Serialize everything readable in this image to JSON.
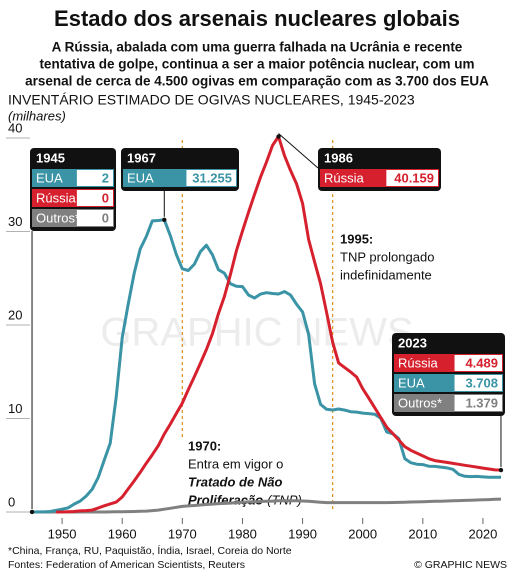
{
  "chart_data": {
    "type": "line",
    "title": "Estado dos arsenais nucleares globais",
    "subtitle": [
      "A Rússia, abalada com uma guerra falhada na Ucrânia e recente",
      "tentativa de golpe, continua a ser a maior potência nuclear, com um",
      "arsenal de cerca de 4.500 ogivas em comparação com as 3.700 dos EUA"
    ],
    "chart_title": "INVENTÁRIO ESTIMADO DE OGIVAS NUCLEARES, 1945-2023",
    "y_label": "(milhares)",
    "x": [
      1945,
      1946,
      1947,
      1948,
      1949,
      1950,
      1951,
      1952,
      1953,
      1954,
      1955,
      1956,
      1957,
      1958,
      1959,
      1960,
      1961,
      1962,
      1963,
      1964,
      1965,
      1966,
      1967,
      1968,
      1969,
      1970,
      1971,
      1972,
      1973,
      1974,
      1975,
      1976,
      1977,
      1978,
      1979,
      1980,
      1981,
      1982,
      1983,
      1984,
      1985,
      1986,
      1987,
      1988,
      1989,
      1990,
      1991,
      1992,
      1993,
      1994,
      1995,
      1996,
      1997,
      1998,
      1999,
      2000,
      2001,
      2002,
      2003,
      2004,
      2005,
      2006,
      2007,
      2008,
      2009,
      2010,
      2011,
      2012,
      2013,
      2014,
      2015,
      2016,
      2017,
      2018,
      2019,
      2020,
      2021,
      2022,
      2023
    ],
    "series": [
      {
        "name": "EUA",
        "color": "#3a94a6",
        "values": [
          0.002,
          0.009,
          0.013,
          0.05,
          0.17,
          0.299,
          0.438,
          0.841,
          1.169,
          1.703,
          2.422,
          3.692,
          5.543,
          7.345,
          12.298,
          18.638,
          22.229,
          25.54,
          28.133,
          29.463,
          31.139,
          31.175,
          31.255,
          29.561,
          27.552,
          26.008,
          25.83,
          26.516,
          27.835,
          28.537,
          27.519,
          25.914,
          25.542,
          24.418,
          24.138,
          24.104,
          23.208,
          22.886,
          23.305,
          23.459,
          23.368,
          23.317,
          23.575,
          23.205,
          22.217,
          21.392,
          19.008,
          13.708,
          11.511,
          10.979,
          10.904,
          11.011,
          10.903,
          10.732,
          10.685,
          10.577,
          10.526,
          10.457,
          10.027,
          8.57,
          8.36,
          7.853,
          5.709,
          5.273,
          5.113,
          5.066,
          4.897,
          4.881,
          4.804,
          4.717,
          4.571,
          4.018,
          3.822,
          3.785,
          3.805,
          3.75,
          3.708,
          3.708,
          3.708
        ]
      },
      {
        "name": "Rússia",
        "color": "#d6202e",
        "values": [
          null,
          null,
          null,
          null,
          0.001,
          0.005,
          0.025,
          0.05,
          0.12,
          0.15,
          0.2,
          0.426,
          0.66,
          0.869,
          1.06,
          1.605,
          2.471,
          3.322,
          4.238,
          5.221,
          6.129,
          7.089,
          8.339,
          9.399,
          10.538,
          11.643,
          13.092,
          14.478,
          15.915,
          17.385,
          19.055,
          21.205,
          23.044,
          25.393,
          27.935,
          30.062,
          32.049,
          33.952,
          35.804,
          37.431,
          39.197,
          40.159,
          38.107,
          36.538,
          35.078,
          32.98,
          29.154,
          26.734,
          24.403,
          21.339,
          18.179,
          15.942,
          15.442,
          14.978,
          14.428,
          13.188,
          12.188,
          11.152,
          10.114,
          9.076,
          8.4,
          7.7,
          7.0,
          6.6,
          6.3,
          6.0,
          5.7,
          5.5,
          5.4,
          5.3,
          5.2,
          5.1,
          5.0,
          4.9,
          4.8,
          4.7,
          4.6,
          4.5,
          4.489
        ]
      },
      {
        "name": "Outros*",
        "color": "#808080",
        "values": [
          0,
          0,
          0,
          0,
          0,
          0,
          0,
          0.001,
          0.001,
          0.001,
          0.001,
          0.003,
          0.005,
          0.01,
          0.02,
          0.03,
          0.04,
          0.05,
          0.07,
          0.1,
          0.15,
          0.2,
          0.3,
          0.4,
          0.5,
          0.6,
          0.65,
          0.7,
          0.75,
          0.8,
          0.85,
          0.9,
          0.92,
          0.95,
          1.0,
          1.05,
          1.08,
          1.1,
          1.12,
          1.15,
          1.17,
          1.2,
          1.2,
          1.2,
          1.2,
          1.18,
          1.15,
          1.1,
          1.05,
          1.0,
          1.0,
          1.0,
          1.0,
          1.0,
          1.0,
          1.0,
          1.0,
          1.0,
          1.0,
          1.0,
          1.02,
          1.03,
          1.05,
          1.07,
          1.08,
          1.1,
          1.12,
          1.14,
          1.16,
          1.18,
          1.2,
          1.22,
          1.24,
          1.26,
          1.28,
          1.3,
          1.33,
          1.36,
          1.379
        ]
      }
    ],
    "xlim": [
      1943,
      2025
    ],
    "ylim": [
      0,
      40
    ],
    "xticks": [
      1950,
      1960,
      1970,
      1980,
      1990,
      2000,
      2010,
      2020
    ],
    "yticks": [
      0,
      10,
      20,
      30,
      40
    ],
    "boxes": [
      {
        "year": 1945,
        "rows": [
          {
            "name": "EUA",
            "value": 0.002,
            "label": "2"
          },
          {
            "name": "Rússia",
            "value": 0,
            "label": "0"
          },
          {
            "name": "Outros*",
            "value": 0,
            "label": "0"
          }
        ]
      },
      {
        "year": 1967,
        "rows": [
          {
            "name": "EUA",
            "value": 31.255,
            "label": "31.255"
          }
        ]
      },
      {
        "year": 1986,
        "rows": [
          {
            "name": "Rússia",
            "value": 40.159,
            "label": "40.159"
          }
        ]
      },
      {
        "year": 2023,
        "rows": [
          {
            "name": "Rússia",
            "value": 4.489,
            "label": "4.489"
          },
          {
            "name": "EUA",
            "value": 3.708,
            "label": "3.708"
          },
          {
            "name": "Outros*",
            "value": 1.379,
            "label": "1.379"
          }
        ]
      }
    ],
    "events": [
      {
        "year": 1970,
        "label": "1970:",
        "lines": [
          "Entra em vigor o"
        ],
        "treaty": [
          "Tratado de Não",
          "Proliferação"
        ],
        "abbr": "(TNP)"
      },
      {
        "year": 1995,
        "label": "1995:",
        "lines": [
          "TNP prolongado",
          "indefinidamente"
        ]
      }
    ],
    "watermark": "GRAPHIC NEWS",
    "footnote": "*China, França, RU, Paquistão, Índia, Israel, Coreia do Norte",
    "source": "Fontes: Federation of American Scientists, Reuters",
    "credit": "© GRAPHIC NEWS"
  }
}
